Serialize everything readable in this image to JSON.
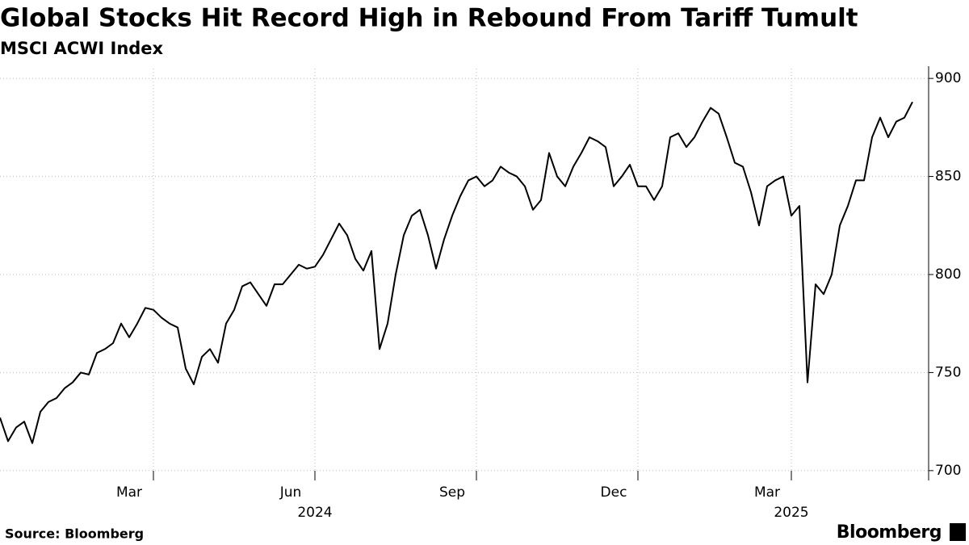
{
  "chart_data": {
    "type": "line",
    "title": "Global Stocks Hit Record High in Rebound From Tariff Tumult",
    "subtitle": "MSCI ACWI Index",
    "source": "Source: Bloomberg",
    "brand": "Bloomberg",
    "categories": [
      null,
      null,
      null,
      null,
      null,
      null,
      null,
      null,
      null,
      null,
      null,
      null,
      null,
      null,
      null,
      null,
      null,
      null,
      null,
      "Mar",
      null,
      null,
      null,
      null,
      null,
      null,
      null,
      null,
      null,
      null,
      null,
      null,
      null,
      null,
      null,
      null,
      null,
      null,
      null,
      "Jun",
      null,
      null,
      null,
      null,
      null,
      null,
      null,
      null,
      null,
      null,
      null,
      null,
      null,
      null,
      null,
      null,
      null,
      null,
      null,
      "Sep",
      null,
      null,
      null,
      null,
      null,
      null,
      null,
      null,
      null,
      null,
      null,
      null,
      null,
      null,
      null,
      null,
      null,
      null,
      null,
      "Dec",
      null,
      null,
      null,
      null,
      null,
      null,
      null,
      null,
      null,
      null,
      null,
      null,
      null,
      null,
      null,
      null,
      null,
      null,
      "Mar",
      null,
      null,
      null,
      null,
      null,
      null,
      null,
      null,
      null,
      null,
      null,
      null,
      null,
      null,
      null
    ],
    "category_groups": [
      null,
      null,
      null,
      null,
      null,
      null,
      null,
      null,
      null,
      null,
      null,
      null,
      null,
      null,
      null,
      null,
      null,
      null,
      null,
      null,
      null,
      null,
      null,
      null,
      null,
      null,
      null,
      null,
      null,
      null,
      null,
      null,
      null,
      null,
      null,
      null,
      null,
      null,
      null,
      "2024",
      null,
      null,
      null,
      null,
      null,
      null,
      null,
      null,
      null,
      null,
      null,
      null,
      null,
      null,
      null,
      null,
      null,
      null,
      null,
      null,
      null,
      null,
      null,
      null,
      null,
      null,
      null,
      null,
      null,
      null,
      null,
      null,
      null,
      null,
      null,
      null,
      null,
      null,
      null,
      null,
      null,
      null,
      null,
      null,
      null,
      null,
      null,
      null,
      null,
      null,
      null,
      null,
      null,
      null,
      null,
      null,
      null,
      null,
      "2025",
      null,
      null,
      null,
      null,
      null,
      null,
      null,
      null,
      null,
      null,
      null,
      null,
      null,
      null,
      null
    ],
    "series": [
      {
        "name": "MSCI ACWI Index",
        "color": "#000000",
        "values": [
          727,
          715,
          722,
          725,
          714,
          730,
          735,
          737,
          742,
          745,
          750,
          749,
          760,
          762,
          765,
          775,
          768,
          775,
          783,
          782,
          778,
          775,
          773,
          752,
          744,
          758,
          762,
          755,
          775,
          782,
          794,
          796,
          790,
          784,
          795,
          795,
          800,
          805,
          803,
          804,
          810,
          818,
          826,
          820,
          808,
          802,
          812,
          762,
          775,
          800,
          820,
          830,
          833,
          820,
          803,
          818,
          830,
          840,
          848,
          850,
          845,
          848,
          855,
          852,
          850,
          845,
          833,
          838,
          862,
          850,
          845,
          855,
          862,
          870,
          868,
          865,
          845,
          850,
          856,
          845,
          845,
          838,
          845,
          870,
          872,
          865,
          870,
          878,
          885,
          882,
          870,
          857,
          855,
          842,
          825,
          845,
          848,
          850,
          830,
          835,
          745,
          795,
          790,
          800,
          825,
          835,
          848,
          848,
          870,
          880,
          870,
          878,
          880,
          888
        ]
      }
    ],
    "ylim": [
      695,
      905
    ],
    "yticks": [
      700,
      750,
      800,
      850,
      900
    ],
    "grid": true
  }
}
